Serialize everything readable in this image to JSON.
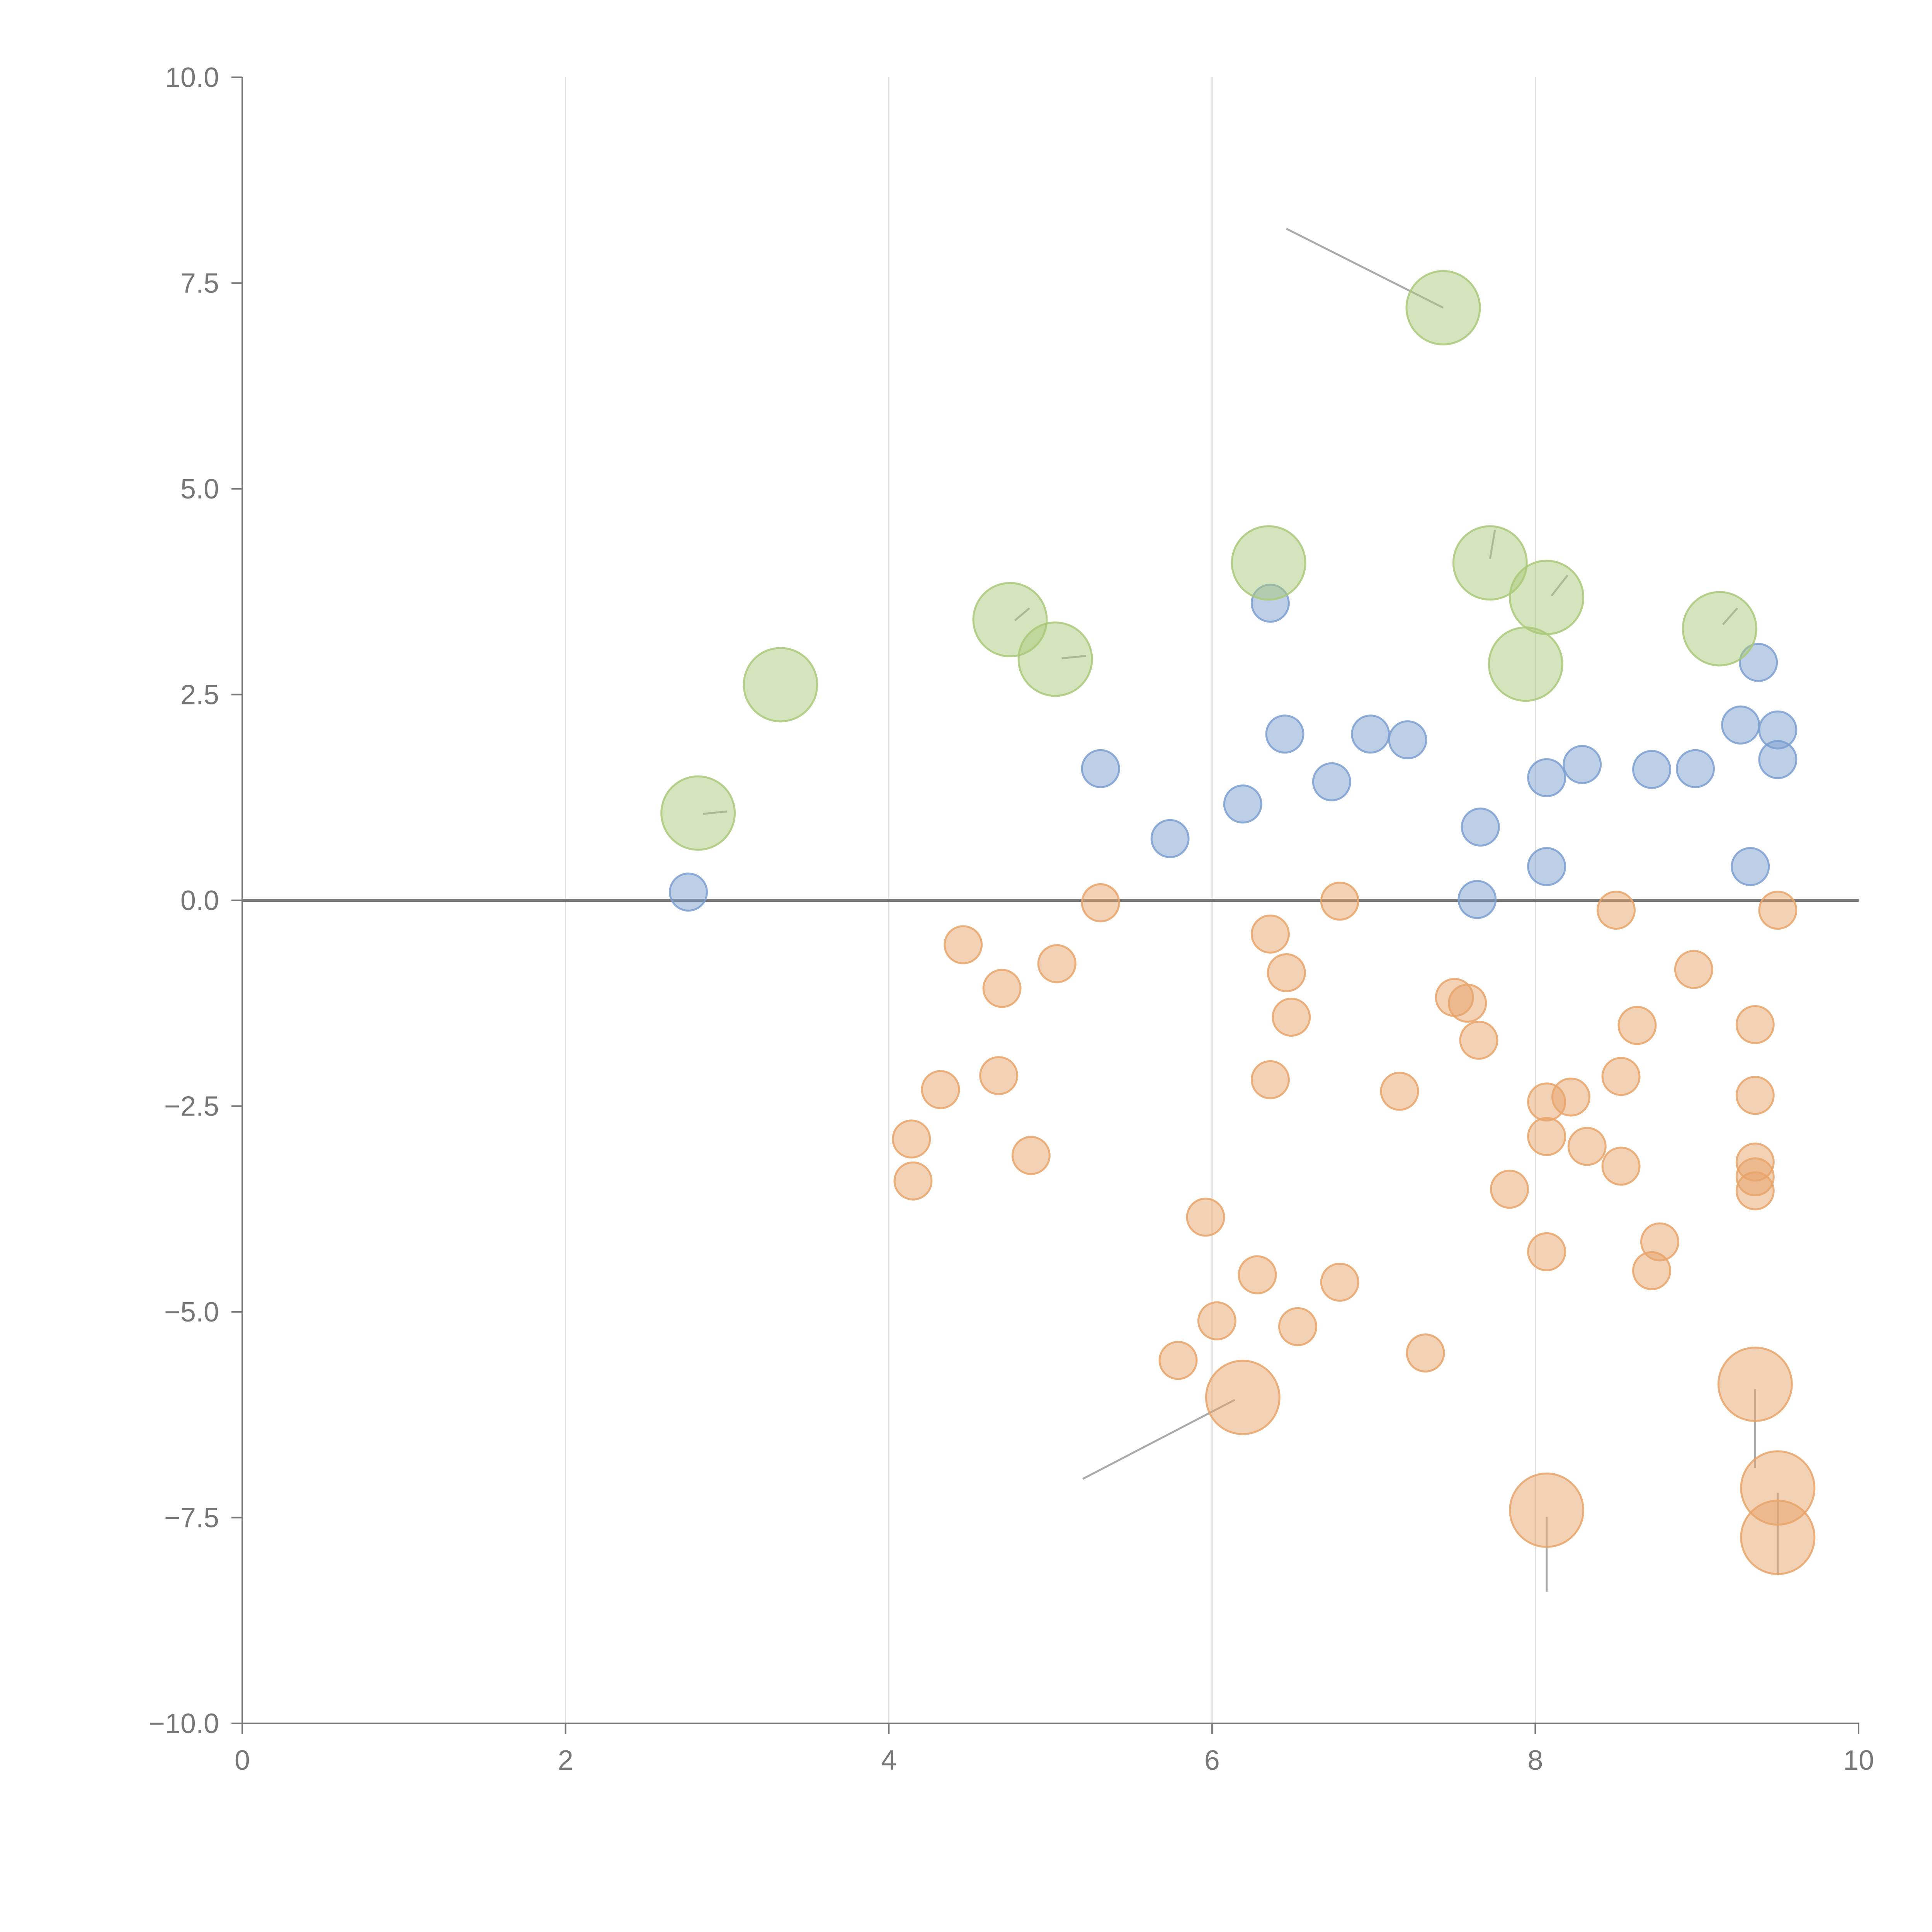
{
  "chart_data": {
    "type": "scatter",
    "title": "",
    "xlabel": "",
    "ylabel": "",
    "xlim": [
      0,
      10
    ],
    "ylim": [
      -10,
      10
    ],
    "grid": "vertical",
    "x_ticks": [
      0,
      2,
      4,
      6,
      8,
      10
    ],
    "x_tick_labels": [
      "0",
      "2",
      "4",
      "6",
      "8",
      "10"
    ],
    "y_ticks": [
      10,
      7.5,
      5,
      2.5,
      0,
      -2.5,
      -5,
      -7.5,
      -10
    ],
    "y_tick_labels": [
      "10.0",
      "7.5",
      "5.0",
      "2.5",
      "0.0",
      "−2.5",
      "−5.0",
      "−7.5",
      "−10.0"
    ],
    "reference_line": 0,
    "colors": {
      "blue": "#7b9fd0",
      "orange": "#e8a46a",
      "green": "#a9c97a",
      "axis": "#777777",
      "grid": "#dddddd",
      "leader": "#aaaaaa"
    },
    "series": [
      {
        "name": "positive-small",
        "color": "blue",
        "size": "small",
        "points": [
          [
            2.76,
            0.1
          ],
          [
            5.31,
            1.6
          ],
          [
            5.74,
            0.75
          ],
          [
            6.19,
            1.17
          ],
          [
            6.36,
            3.61
          ],
          [
            6.45,
            2.02
          ],
          [
            6.74,
            1.44
          ],
          [
            6.98,
            2.02
          ],
          [
            7.21,
            1.95
          ],
          [
            7.64,
            0.01
          ],
          [
            7.66,
            0.89
          ],
          [
            8.07,
            1.49
          ],
          [
            8.07,
            0.41
          ],
          [
            8.29,
            1.65
          ],
          [
            8.72,
            1.59
          ],
          [
            8.99,
            1.6
          ],
          [
            9.27,
            2.13
          ],
          [
            9.33,
            0.41
          ],
          [
            9.38,
            2.89
          ],
          [
            9.5,
            2.07
          ],
          [
            9.5,
            1.71
          ]
        ]
      },
      {
        "name": "negative-small",
        "color": "orange",
        "size": "small",
        "points": [
          [
            4.14,
            -2.9
          ],
          [
            4.15,
            -3.41
          ],
          [
            4.32,
            -2.3
          ],
          [
            4.46,
            -0.54
          ],
          [
            4.68,
            -2.13
          ],
          [
            4.7,
            -1.07
          ],
          [
            4.88,
            -3.1
          ],
          [
            5.04,
            -0.77
          ],
          [
            5.31,
            -0.03
          ],
          [
            5.79,
            -5.59
          ],
          [
            5.96,
            -3.85
          ],
          [
            6.03,
            -5.11
          ],
          [
            6.28,
            -4.55
          ],
          [
            6.36,
            -0.41
          ],
          [
            6.36,
            -2.18
          ],
          [
            6.46,
            -0.88
          ],
          [
            6.49,
            -1.42
          ],
          [
            6.53,
            -5.18
          ],
          [
            6.79,
            -0.01
          ],
          [
            6.79,
            -4.64
          ],
          [
            7.16,
            -2.32
          ],
          [
            7.32,
            -5.5
          ],
          [
            7.5,
            -1.18
          ],
          [
            7.58,
            -1.25
          ],
          [
            7.65,
            -1.7
          ],
          [
            7.84,
            -3.51
          ],
          [
            8.07,
            -2.45
          ],
          [
            8.07,
            -2.87
          ],
          [
            8.07,
            -4.27
          ],
          [
            8.22,
            -2.39
          ],
          [
            8.32,
            -2.99
          ],
          [
            8.5,
            -0.12
          ],
          [
            8.53,
            -2.14
          ],
          [
            8.53,
            -3.23
          ],
          [
            8.63,
            -1.52
          ],
          [
            8.72,
            -4.5
          ],
          [
            8.77,
            -4.15
          ],
          [
            8.98,
            -0.84
          ],
          [
            9.36,
            -1.51
          ],
          [
            9.36,
            -2.37
          ],
          [
            9.36,
            -3.18
          ],
          [
            9.36,
            -3.36
          ],
          [
            9.36,
            -3.53
          ],
          [
            9.5,
            -0.12
          ]
        ]
      },
      {
        "name": "positive-large",
        "color": "green",
        "size": "large",
        "points": [
          [
            2.82,
            1.06
          ],
          [
            3.33,
            2.62
          ],
          [
            4.75,
            3.41
          ],
          [
            5.03,
            2.93
          ],
          [
            6.35,
            4.1
          ],
          [
            7.43,
            7.2
          ],
          [
            7.72,
            4.1
          ],
          [
            7.94,
            2.87
          ],
          [
            8.07,
            3.68
          ],
          [
            9.14,
            3.3
          ]
        ]
      },
      {
        "name": "negative-large",
        "color": "orange",
        "size": "large",
        "points": [
          [
            6.19,
            -6.04
          ],
          [
            8.07,
            -7.41
          ],
          [
            9.36,
            -5.88
          ],
          [
            9.5,
            -7.14
          ],
          [
            9.5,
            -7.74
          ]
        ]
      }
    ],
    "leader_lines": [
      {
        "from": [
          7.43,
          7.2
        ],
        "to": [
          6.46,
          8.16
        ]
      },
      {
        "from": [
          6.14,
          -6.07
        ],
        "to": [
          5.2,
          -7.03
        ]
      },
      {
        "from": [
          8.07,
          -7.49
        ],
        "to": [
          8.07,
          -8.4
        ]
      },
      {
        "from": [
          9.36,
          -5.94
        ],
        "to": [
          9.36,
          -6.9
        ]
      },
      {
        "from": [
          9.5,
          -7.2
        ],
        "to": [
          9.5,
          -8.2
        ]
      },
      {
        "from": [
          2.85,
          1.05
        ],
        "to": [
          3.0,
          1.08
        ]
      },
      {
        "from": [
          4.78,
          3.4
        ],
        "to": [
          4.87,
          3.55
        ]
      },
      {
        "from": [
          5.07,
          2.94
        ],
        "to": [
          5.22,
          2.97
        ]
      },
      {
        "from": [
          7.72,
          4.15
        ],
        "to": [
          7.75,
          4.5
        ]
      },
      {
        "from": [
          8.1,
          3.7
        ],
        "to": [
          8.2,
          3.95
        ]
      },
      {
        "from": [
          9.16,
          3.35
        ],
        "to": [
          9.25,
          3.55
        ]
      }
    ]
  }
}
